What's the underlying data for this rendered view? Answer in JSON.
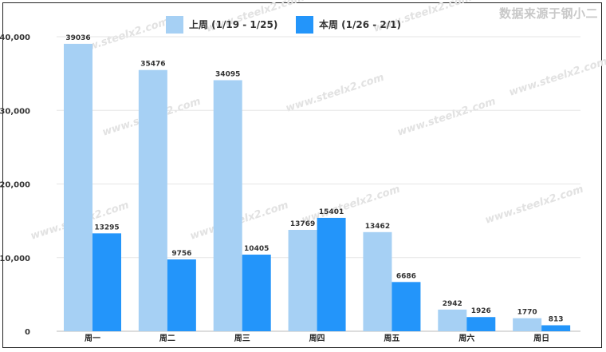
{
  "source_note": "数据来源于钢小二",
  "watermark_text": "www.steelx2.com",
  "chart_data": {
    "type": "bar",
    "categories": [
      "周一",
      "周二",
      "周三",
      "周四",
      "周五",
      "周六",
      "周日"
    ],
    "series": [
      {
        "name": "上周 (1/19 - 1/25)",
        "color": "#a6d0f4",
        "values": [
          39036,
          35476,
          34095,
          13769,
          13462,
          2942,
          1770
        ]
      },
      {
        "name": "本周 (1/26 - 2/1)",
        "color": "#2395fa",
        "values": [
          13295,
          9756,
          10405,
          15401,
          6686,
          1926,
          813
        ]
      }
    ],
    "ylim": [
      0,
      40000
    ],
    "yticks": [
      0,
      10000,
      20000,
      30000,
      40000
    ],
    "ytick_labels": [
      "0",
      "10,000",
      "20,000",
      "30,000",
      "40,000"
    ],
    "grid": true,
    "legend_position": "top-center",
    "data_labels": true
  }
}
